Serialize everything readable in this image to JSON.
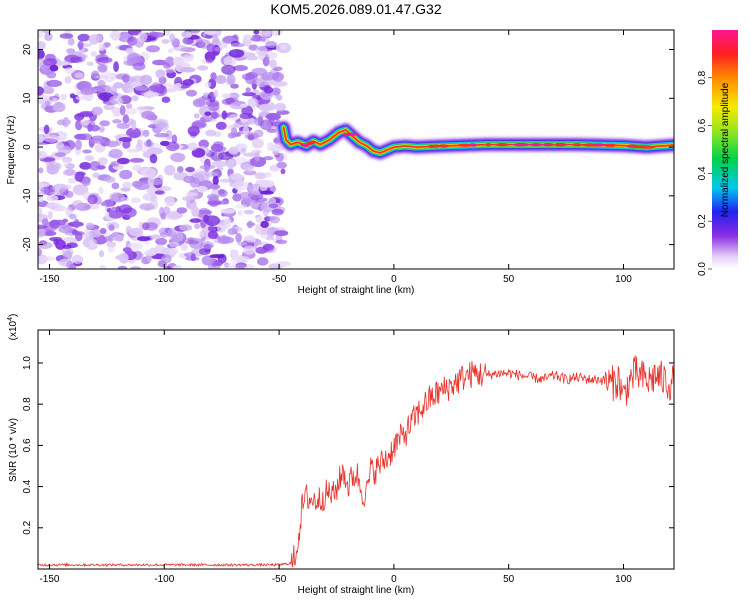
{
  "chart_data": [
    {
      "type": "heatmap",
      "title": "KOM5.2026.089.01.47.G32",
      "xlabel": "Height of straight line (km)",
      "ylabel": "Frequency (Hz)",
      "xlim": [
        -155,
        122
      ],
      "ylim": [
        -25,
        24
      ],
      "xticks": [
        -150,
        -100,
        -50,
        0,
        50,
        100
      ],
      "yticks": [
        -20,
        -10,
        0,
        10,
        20
      ],
      "noise_region_x": [
        -155,
        -48
      ],
      "ridge": {
        "x": [
          -48,
          -47,
          -45,
          -42,
          -38,
          -35,
          -32,
          -28,
          -24,
          -21,
          -18,
          -15,
          -12,
          -9,
          -6,
          -3,
          0,
          5,
          10,
          20,
          40,
          60,
          80,
          100,
          110,
          122
        ],
        "y": [
          4,
          1.5,
          0.5,
          1,
          0.3,
          1.2,
          0.5,
          1.5,
          3,
          3.5,
          2.2,
          1,
          0.3,
          -0.8,
          -1.2,
          -0.6,
          0,
          0.2,
          0,
          0.2,
          0.5,
          0.5,
          0.5,
          0.3,
          0,
          0.4
        ]
      },
      "colorbar": {
        "label": "Normalized spectral amplitude",
        "range": [
          0,
          1
        ],
        "ticks": [
          "0.0",
          "0.2",
          "0.4",
          "0.6",
          "0.8"
        ]
      }
    },
    {
      "type": "line",
      "xlabel": "Height of straight line (km)",
      "ylabel": "SNR (10 * v/v)",
      "multiplier": "(x10",
      "multiplier_exp": "4",
      "multiplier_close": ")",
      "xlim": [
        -155,
        122
      ],
      "ylim": [
        0,
        1.16
      ],
      "xticks": [
        -150,
        -100,
        -50,
        0,
        50,
        100
      ],
      "yticks": [
        "0.2",
        "0.4",
        "0.6",
        "0.8",
        "1.0"
      ],
      "series": [
        {
          "name": "SNR",
          "color": "#e8322a",
          "x": [
            -155,
            -100,
            -50,
            -44,
            -42,
            -40,
            -38,
            -35,
            -32,
            -29,
            -26,
            -24,
            -22,
            -20,
            -18,
            -16,
            -14,
            -12,
            -10,
            -8,
            -5,
            -2,
            0,
            5,
            10,
            15,
            20,
            25,
            30,
            35,
            40,
            45,
            50,
            55,
            60,
            65,
            70,
            75,
            80,
            85,
            90,
            95,
            98,
            100,
            102,
            105,
            108,
            111,
            114,
            117,
            120,
            122
          ],
          "values": [
            0.02,
            0.02,
            0.02,
            0.03,
            0.12,
            0.3,
            0.35,
            0.33,
            0.34,
            0.37,
            0.36,
            0.42,
            0.48,
            0.4,
            0.45,
            0.46,
            0.38,
            0.36,
            0.48,
            0.48,
            0.52,
            0.55,
            0.6,
            0.66,
            0.75,
            0.82,
            0.86,
            0.89,
            0.93,
            0.95,
            0.94,
            0.95,
            0.95,
            0.94,
            0.93,
            0.92,
            0.94,
            0.92,
            0.93,
            0.92,
            0.92,
            0.9,
            0.92,
            0.83,
            0.9,
            0.95,
            0.93,
            0.91,
            0.94,
            0.92,
            0.9,
            0.91
          ]
        }
      ]
    }
  ]
}
